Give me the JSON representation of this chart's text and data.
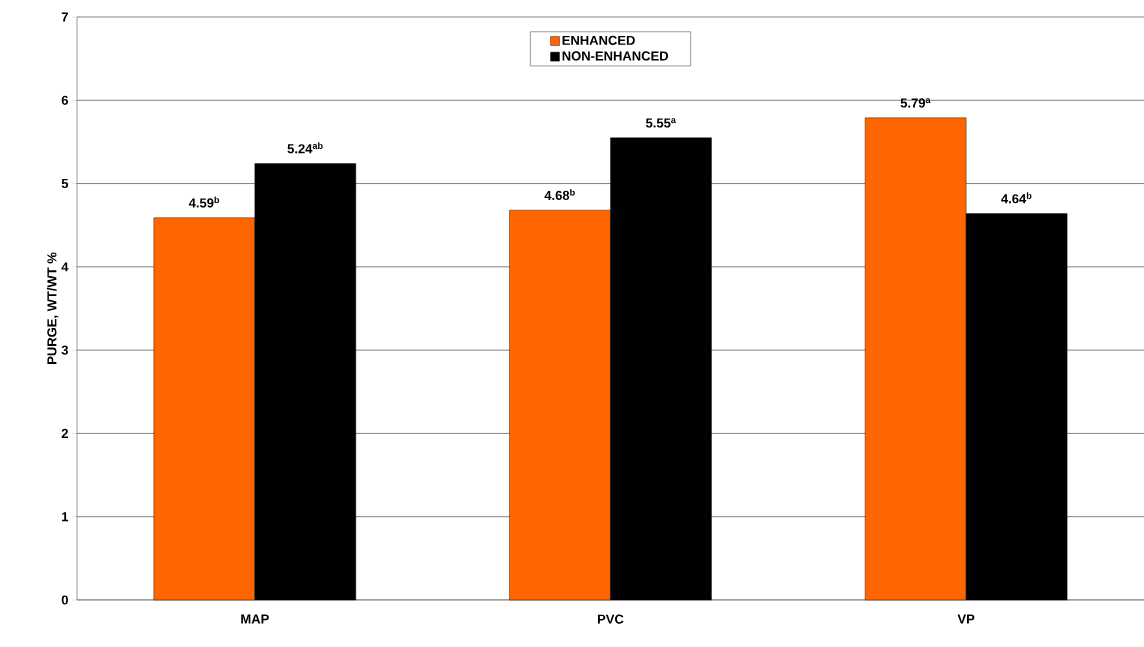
{
  "chart_data": {
    "type": "bar",
    "ylabel": "PURGE, WT/WT %",
    "categories": [
      "MAP",
      "PVC",
      "VP"
    ],
    "series": [
      {
        "name": "ENHANCED",
        "color": "#ff6600",
        "values": [
          4.59,
          4.68,
          5.79
        ],
        "value_labels": [
          "4.59$^{b}$",
          "4.68$^{b}$",
          "5.79$^{a}$"
        ]
      },
      {
        "name": "NON-ENHANCED",
        "color": "#000000",
        "values": [
          5.24,
          5.55,
          4.64
        ],
        "value_labels": [
          "5.24$^{ab}$",
          "5.55$^{a}$",
          "4.64$^{b}$"
        ]
      }
    ],
    "ylim": [
      0,
      7
    ],
    "yticks": [
      0,
      1,
      2,
      3,
      4,
      5,
      6,
      7
    ],
    "grid": "y",
    "legend": "top"
  }
}
